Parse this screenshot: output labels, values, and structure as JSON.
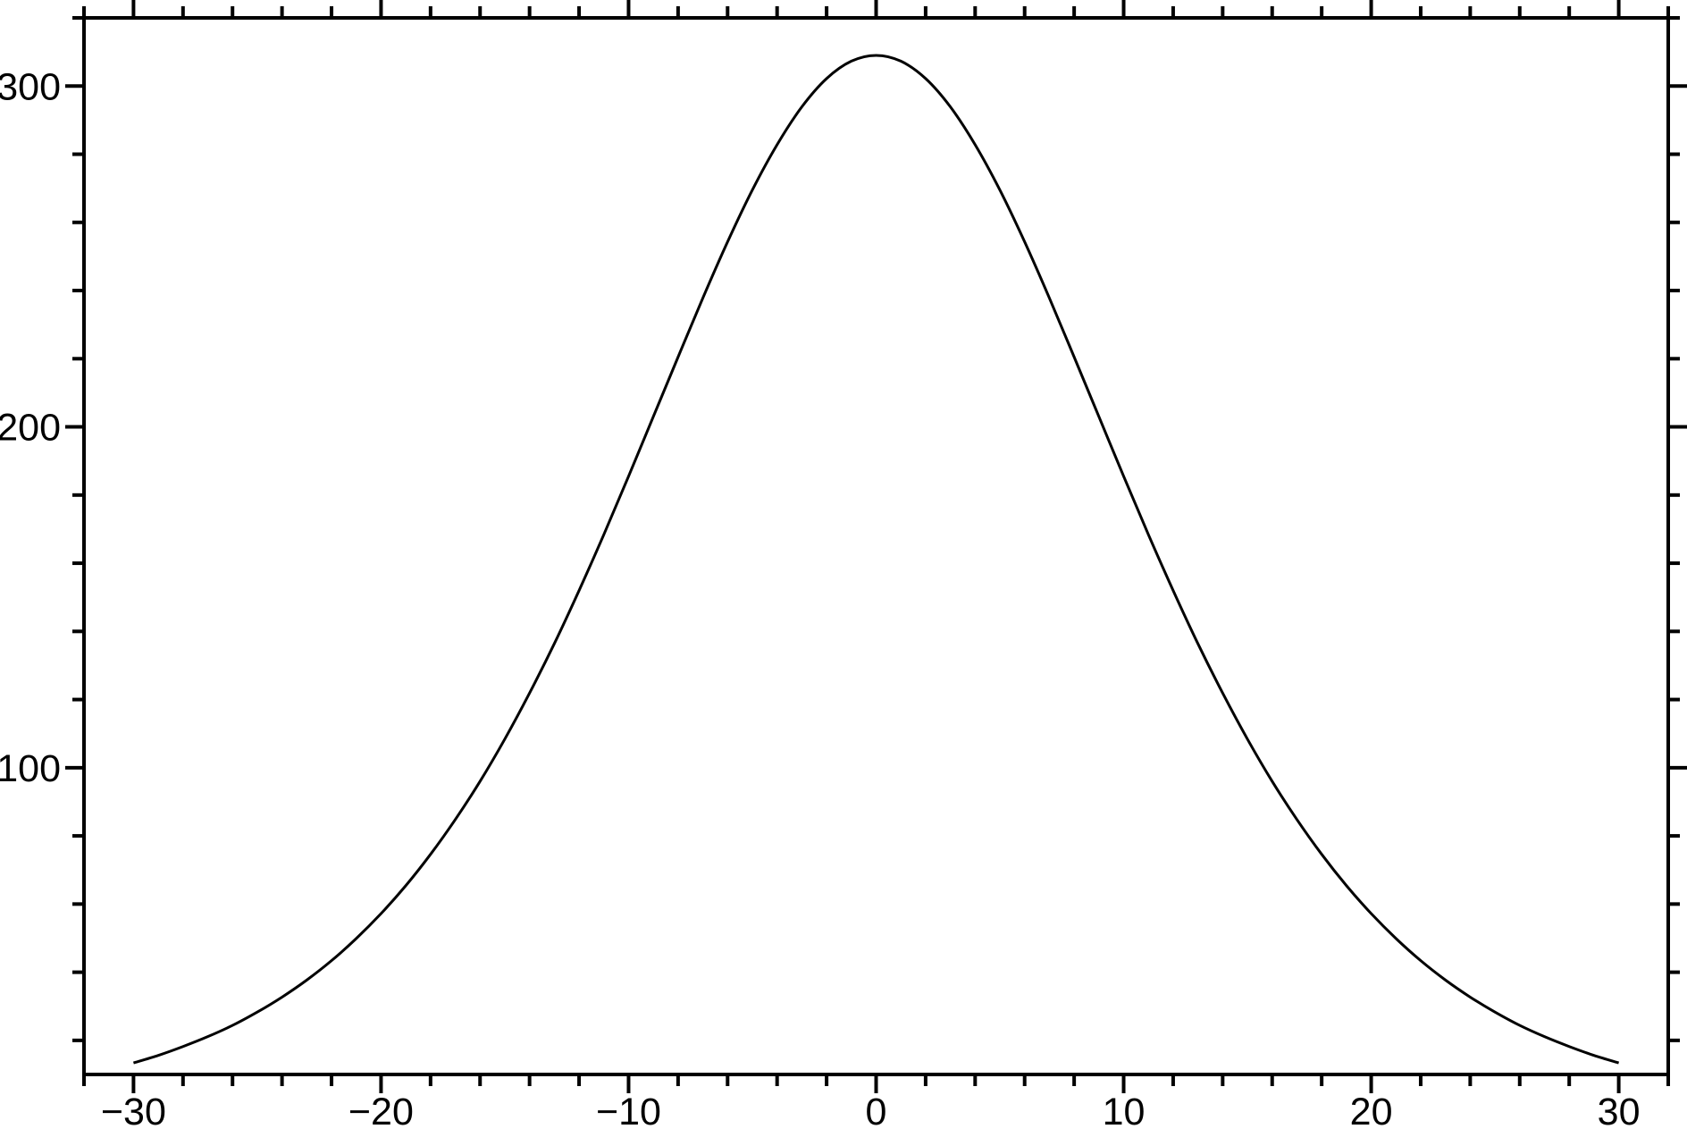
{
  "figure": {
    "background_color": "#ffffff",
    "frame_color": "#000000",
    "title": ""
  },
  "chart_data": {
    "type": "line",
    "title": "",
    "subtitle": "",
    "xlabel": "",
    "ylabel": "",
    "xlim": [
      -32,
      32
    ],
    "ylim": [
      10,
      320
    ],
    "grid": false,
    "legend": false,
    "frame_style": "closed box with outward-pointing ticks on all four sides; annotations on bottom and left only",
    "x_axis": {
      "major_tick_interval": 10,
      "minor_tick_interval": 2,
      "tick_labels": [
        {
          "value": -30,
          "label": "−30"
        },
        {
          "value": -20,
          "label": "−20"
        },
        {
          "value": -10,
          "label": "−10"
        },
        {
          "value": 0,
          "label": "0"
        },
        {
          "value": 10,
          "label": "10"
        },
        {
          "value": 20,
          "label": "20"
        },
        {
          "value": 30,
          "label": "30"
        }
      ]
    },
    "y_axis": {
      "major_tick_interval": 100,
      "minor_tick_interval": 20,
      "tick_labels": [
        {
          "value": 100,
          "label": "100"
        },
        {
          "value": 200,
          "label": "200"
        },
        {
          "value": 300,
          "label": "300"
        }
      ]
    },
    "series": [
      {
        "name": "bell-shaped peak curve",
        "color": "#000000",
        "line_width": 3,
        "description": "smooth symmetric peak (sech-squared profile): maximum ~309 at x=0, half-maximum ~154 near x=±12, tails ~13 at x=±30",
        "peak": {
          "x": 0,
          "y": 309
        },
        "points": [
          [
            -30,
            13.4
          ],
          [
            -29,
            15.6
          ],
          [
            -28,
            18.2
          ],
          [
            -27,
            21.1
          ],
          [
            -26,
            24.4
          ],
          [
            -25,
            28.3
          ],
          [
            -24,
            32.7
          ],
          [
            -23,
            37.7
          ],
          [
            -22,
            43.4
          ],
          [
            -21,
            49.9
          ],
          [
            -20,
            57.2
          ],
          [
            -19,
            65.4
          ],
          [
            -18,
            74.6
          ],
          [
            -17,
            84.8
          ],
          [
            -16,
            96.0
          ],
          [
            -15,
            108.4
          ],
          [
            -14,
            121.9
          ],
          [
            -13,
            136.4
          ],
          [
            -12,
            152.0
          ],
          [
            -11,
            168.4
          ],
          [
            -10,
            185.5
          ],
          [
            -9,
            203.0
          ],
          [
            -8,
            220.5
          ],
          [
            -7,
            237.8
          ],
          [
            -6,
            254.3
          ],
          [
            -5,
            269.5
          ],
          [
            -4,
            282.8
          ],
          [
            -3,
            293.9
          ],
          [
            -2,
            302.2
          ],
          [
            -1,
            307.3
          ],
          [
            0,
            309.0
          ],
          [
            1,
            307.3
          ],
          [
            2,
            302.2
          ],
          [
            3,
            293.9
          ],
          [
            4,
            282.8
          ],
          [
            5,
            269.5
          ],
          [
            6,
            254.3
          ],
          [
            7,
            237.8
          ],
          [
            8,
            220.5
          ],
          [
            9,
            203.0
          ],
          [
            10,
            185.5
          ],
          [
            11,
            168.4
          ],
          [
            12,
            152.0
          ],
          [
            13,
            136.4
          ],
          [
            14,
            121.9
          ],
          [
            15,
            108.4
          ],
          [
            16,
            96.0
          ],
          [
            17,
            84.8
          ],
          [
            18,
            74.6
          ],
          [
            19,
            65.4
          ],
          [
            20,
            57.2
          ],
          [
            21,
            49.9
          ],
          [
            22,
            43.4
          ],
          [
            23,
            37.7
          ],
          [
            24,
            32.7
          ],
          [
            25,
            28.3
          ],
          [
            26,
            24.4
          ],
          [
            27,
            21.1
          ],
          [
            28,
            18.2
          ],
          [
            29,
            15.6
          ],
          [
            30,
            13.4
          ]
        ]
      }
    ]
  }
}
